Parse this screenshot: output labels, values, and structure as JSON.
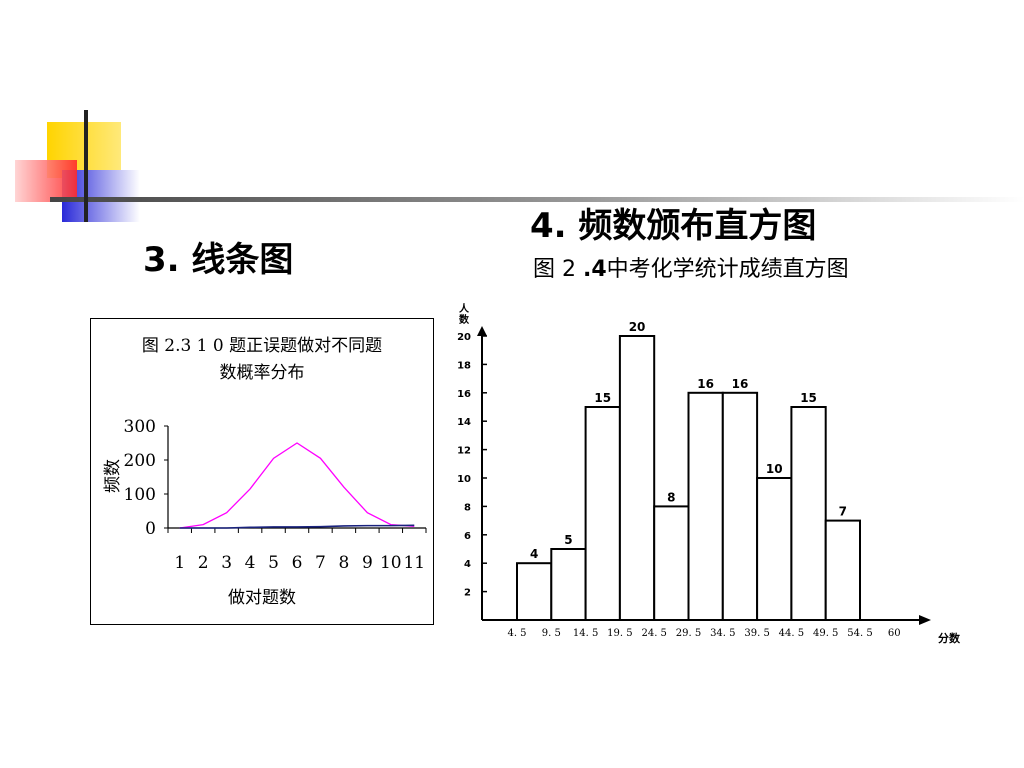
{
  "slide": {
    "title_left": "3. 线条图",
    "title_right": "4. 频数颁布直方图",
    "subtitle_right_prefix": "图 2 ",
    "subtitle_right_bold": ".4",
    "subtitle_right_rest": "中考化学统计成绩直方图"
  },
  "chart_data": [
    {
      "type": "line",
      "title_line1": "图   2.3 1 0 题正误题做对不同题",
      "title_line2": "数概率分布",
      "xlabel": "做对题数",
      "ylabel": "频数",
      "categories": [
        "1",
        "2",
        "3",
        "4",
        "5",
        "6",
        "7",
        "8",
        "9",
        "10",
        "11"
      ],
      "yticks": [
        "300",
        "200",
        "100",
        "0"
      ],
      "ylim": [
        0,
        300
      ],
      "series": [
        {
          "color": "#ff00ff",
          "values": [
            0,
            10,
            45,
            115,
            205,
            250,
            205,
            120,
            45,
            10,
            5
          ]
        },
        {
          "color": "#1a237e",
          "values": [
            0,
            0,
            0,
            2,
            3,
            3,
            4,
            6,
            7,
            7,
            8
          ]
        }
      ]
    },
    {
      "type": "bar",
      "ylabel": "人数",
      "xlabel": "分数",
      "yticks": [
        "20",
        "18",
        "16",
        "14",
        "12",
        "10",
        "8",
        "6",
        "4",
        "2"
      ],
      "ylim": [
        0,
        20
      ],
      "xticks": [
        "4. 5",
        "9. 5",
        "14. 5",
        "19. 5",
        "24. 5",
        "29. 5",
        "34. 5",
        "39. 5",
        "44. 5",
        "49. 5",
        "54. 5",
        "60"
      ],
      "values": [
        4,
        5,
        15,
        20,
        8,
        16,
        16,
        10,
        15,
        7
      ],
      "labels": [
        "4",
        "5",
        "15",
        "20",
        "8",
        "16",
        "16",
        "10",
        "15",
        "7"
      ]
    }
  ]
}
